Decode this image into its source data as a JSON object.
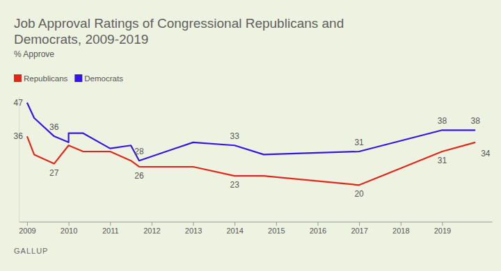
{
  "chart_data": {
    "type": "line",
    "title": "Job Approval Ratings of Congressional Republicans and Democrats, 2009-2019",
    "subtitle": "% Approve",
    "source": "GALLUP",
    "legend": "top-left",
    "tick_labels": "x",
    "grid": false,
    "xlim": [
      2008.8,
      2020.2
    ],
    "xticks": [
      2009,
      2010,
      2011,
      2012,
      2013,
      2014,
      2015,
      2016,
      2017,
      2018,
      2019
    ],
    "ylim": [
      8,
      49
    ],
    "yticks": [],
    "series": [
      {
        "name": "Republicans",
        "color": "#e3261b",
        "x": [
          2009.0,
          2009.17,
          2009.65,
          2010.0,
          2010.35,
          2011.0,
          2011.5,
          2011.7,
          2013.0,
          2014.0,
          2014.7,
          2017.0,
          2019.0,
          2019.8
        ],
        "values": [
          36,
          30,
          27,
          33,
          31,
          31,
          28,
          26,
          26,
          23,
          23,
          20,
          31,
          34
        ],
        "value_labels": [
          "36",
          null,
          "27",
          null,
          null,
          null,
          null,
          "26",
          null,
          "23",
          null,
          "20",
          "31",
          "34"
        ]
      },
      {
        "name": "Democrats",
        "color": "#3414e6",
        "x": [
          2009.0,
          2009.17,
          2009.65,
          2010.0,
          2010.0,
          2010.35,
          2011.0,
          2011.5,
          2011.7,
          2013.0,
          2014.0,
          2014.7,
          2017.0,
          2019.0,
          2019.8
        ],
        "values": [
          47,
          42,
          36,
          34,
          37,
          37,
          32,
          33,
          28,
          34,
          33,
          30,
          31,
          38,
          38
        ],
        "value_labels": [
          "47",
          null,
          "36",
          null,
          null,
          null,
          null,
          null,
          "28",
          null,
          "33",
          null,
          "31",
          "38",
          "38"
        ]
      }
    ]
  }
}
